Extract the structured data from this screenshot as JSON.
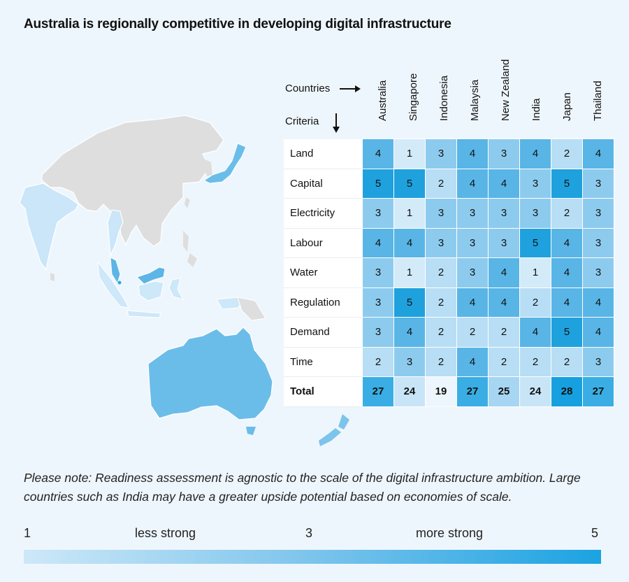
{
  "title": "Australia is regionally competitive in developing digital infrastructure",
  "headers": {
    "countries": "Countries",
    "criteria": "Criteria"
  },
  "note": "Please note: Readiness assessment is agnostic to the scale of the digital infrastructure ambition. Large countries such as India may have a greater upside potential based on economies of scale.",
  "legend": {
    "min": "1",
    "less": "less strong",
    "mid": "3",
    "more": "more strong",
    "max": "5",
    "colors": [
      "#cde8f8",
      "#7cc4ec",
      "#1ba3e2"
    ]
  },
  "map_colors": {
    "ocean": "#eef6fd",
    "land_other": "#dedede",
    "australia": "#6bbde9",
    "india": "#cae6f8",
    "malaysia": "#5cb5e6",
    "indonesia": "#cde8f8",
    "new_zealand": "#7cc4ec",
    "japan": "#6bbde9",
    "thailand": "#cae6f8",
    "singapore": "#2fa6e2"
  },
  "chart_data": {
    "type": "heatmap",
    "title": "Australia is regionally competitive in developing digital infrastructure",
    "columns": [
      "Australia",
      "Singapore",
      "Indonesia",
      "Malaysia",
      "New Zealand",
      "India",
      "Japan",
      "Thailand"
    ],
    "rows": [
      "Land",
      "Capital",
      "Electricity",
      "Labour",
      "Water",
      "Regulation",
      "Demand",
      "Time"
    ],
    "values": [
      [
        4,
        1,
        3,
        4,
        3,
        4,
        2,
        4
      ],
      [
        5,
        5,
        2,
        4,
        4,
        3,
        5,
        3
      ],
      [
        3,
        1,
        3,
        3,
        3,
        3,
        2,
        3
      ],
      [
        4,
        4,
        3,
        3,
        3,
        5,
        4,
        3
      ],
      [
        3,
        1,
        2,
        3,
        4,
        1,
        4,
        3
      ],
      [
        3,
        5,
        2,
        4,
        4,
        2,
        4,
        4
      ],
      [
        3,
        4,
        2,
        2,
        2,
        4,
        5,
        4
      ],
      [
        2,
        3,
        2,
        4,
        2,
        2,
        2,
        3
      ]
    ],
    "total_label": "Total",
    "totals": [
      27,
      24,
      19,
      27,
      25,
      24,
      28,
      27
    ],
    "scale": {
      "min": 1,
      "max": 5,
      "min_label": "less strong",
      "max_label": "more strong"
    },
    "cell_colors": {
      "1": "#d3eaf9",
      "2": "#b7def5",
      "3": "#8dcbee",
      "4": "#58b5e6",
      "5": "#1fa1dd"
    },
    "total_colors": {
      "19": "#eef6fd",
      "24": "#c8e5f7",
      "25": "#a6d6f2",
      "27": "#3aaee4",
      "28": "#16a0e0"
    }
  }
}
